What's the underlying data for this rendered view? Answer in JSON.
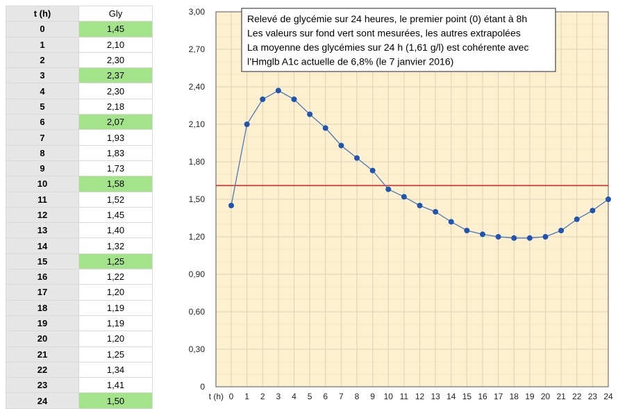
{
  "table": {
    "header_t": "t (h)",
    "header_gly": "Gly",
    "rows": [
      {
        "t": "0",
        "gly": "1,45",
        "measured": true
      },
      {
        "t": "1",
        "gly": "2,10",
        "measured": false
      },
      {
        "t": "2",
        "gly": "2,30",
        "measured": false
      },
      {
        "t": "3",
        "gly": "2,37",
        "measured": true
      },
      {
        "t": "4",
        "gly": "2,30",
        "measured": false
      },
      {
        "t": "5",
        "gly": "2,18",
        "measured": false
      },
      {
        "t": "6",
        "gly": "2,07",
        "measured": true
      },
      {
        "t": "7",
        "gly": "1,93",
        "measured": false
      },
      {
        "t": "8",
        "gly": "1,83",
        "measured": false
      },
      {
        "t": "9",
        "gly": "1,73",
        "measured": false
      },
      {
        "t": "10",
        "gly": "1,58",
        "measured": true
      },
      {
        "t": "11",
        "gly": "1,52",
        "measured": false
      },
      {
        "t": "12",
        "gly": "1,45",
        "measured": false
      },
      {
        "t": "13",
        "gly": "1,40",
        "measured": false
      },
      {
        "t": "14",
        "gly": "1,32",
        "measured": false
      },
      {
        "t": "15",
        "gly": "1,25",
        "measured": true
      },
      {
        "t": "16",
        "gly": "1,22",
        "measured": false
      },
      {
        "t": "17",
        "gly": "1,20",
        "measured": false
      },
      {
        "t": "18",
        "gly": "1,19",
        "measured": false
      },
      {
        "t": "19",
        "gly": "1,19",
        "measured": false
      },
      {
        "t": "20",
        "gly": "1,20",
        "measured": false
      },
      {
        "t": "21",
        "gly": "1,25",
        "measured": false
      },
      {
        "t": "22",
        "gly": "1,34",
        "measured": false
      },
      {
        "t": "23",
        "gly": "1,41",
        "measured": false
      },
      {
        "t": "24",
        "gly": "1,50",
        "measured": true
      }
    ]
  },
  "colors": {
    "plot_background": "#fdf0cf",
    "grid": "#ddd2b8",
    "series_line": "#4a78b8",
    "series_marker": "#1f55b0",
    "average_line": "#dd1111",
    "measured_cell": "#a3e38a"
  },
  "chart_data": {
    "type": "line",
    "x": [
      0,
      1,
      2,
      3,
      4,
      5,
      6,
      7,
      8,
      9,
      10,
      11,
      12,
      13,
      14,
      15,
      16,
      17,
      18,
      19,
      20,
      21,
      22,
      23,
      24
    ],
    "series": [
      {
        "values": [
          1.45,
          2.1,
          2.3,
          2.37,
          2.3,
          2.18,
          2.07,
          1.93,
          1.83,
          1.73,
          1.58,
          1.52,
          1.45,
          1.4,
          1.32,
          1.25,
          1.22,
          1.2,
          1.19,
          1.19,
          1.2,
          1.25,
          1.34,
          1.41,
          1.5
        ]
      }
    ],
    "reference_line": {
      "y": 1.61
    },
    "xlabel": "t (h)",
    "ylabel": "",
    "ylim": [
      0,
      3.0
    ],
    "y_ticks": [
      0,
      0.3,
      0.6,
      0.9,
      1.2,
      1.5,
      1.8,
      2.1,
      2.4,
      2.7,
      3.0
    ],
    "y_tick_labels": [
      "0",
      "0,30",
      "0,60",
      "0,90",
      "1,20",
      "1,50",
      "1,80",
      "2,10",
      "2,40",
      "2,70",
      "3,00"
    ],
    "grid": true,
    "annotation": [
      "Relevé de glycémie sur 24 heures, le premier point (0) étant à 8h",
      "Les valeurs sur fond vert sont mesurées, les autres extrapolées",
      "La moyenne des glycémies sur 24 h (1,61 g/l) est cohérente avec",
      "l’Hmglb A1c actuelle de 6,8% (le 7 janvier 2016)"
    ]
  }
}
